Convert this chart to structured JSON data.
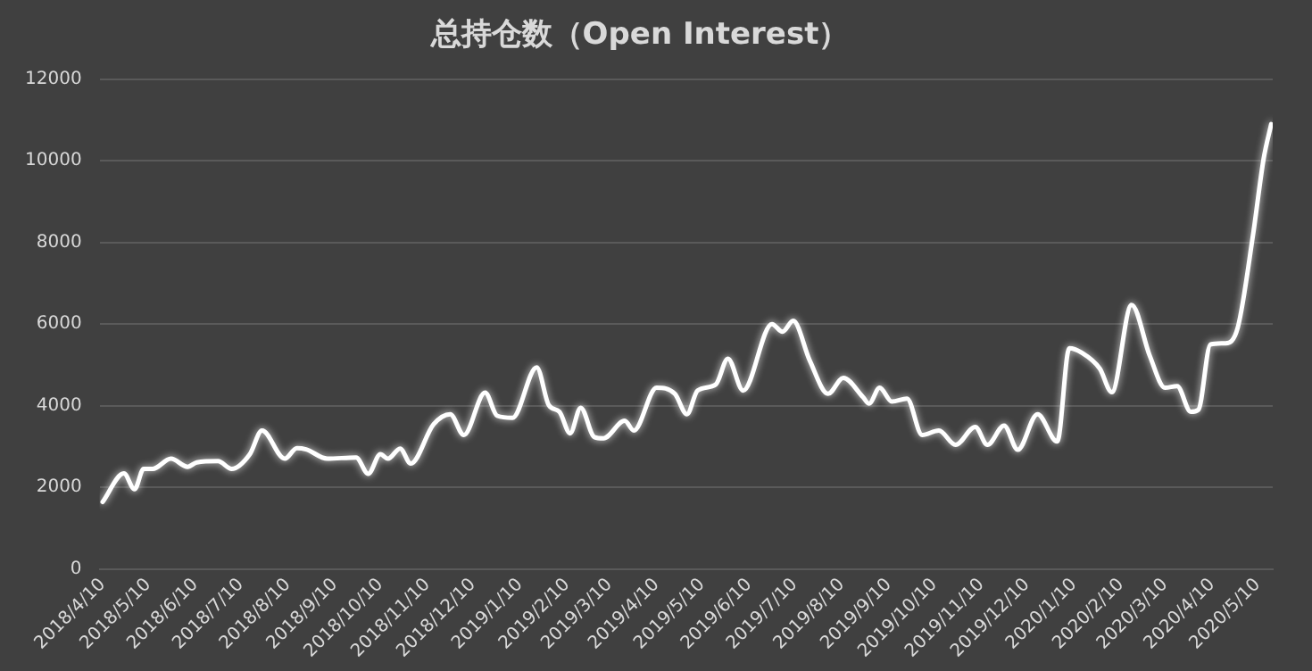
{
  "chart_data": {
    "type": "line",
    "title": "总持仓数（Open Interest）",
    "x": [
      "2018-04-10",
      "2018-04-24",
      "2018-05-01",
      "2018-05-07",
      "2018-05-13",
      "2018-05-25",
      "2018-06-05",
      "2018-06-11",
      "2018-06-25",
      "2018-07-04",
      "2018-07-16",
      "2018-07-24",
      "2018-08-08",
      "2018-08-16",
      "2018-08-22",
      "2018-09-05",
      "2018-09-24",
      "2018-10-02",
      "2018-10-10",
      "2018-10-15",
      "2018-10-23",
      "2018-10-30",
      "2018-11-14",
      "2018-11-25",
      "2018-12-04",
      "2018-12-18",
      "2018-12-26",
      "2019-01-05",
      "2019-01-21",
      "2019-01-29",
      "2019-02-05",
      "2019-02-12",
      "2019-02-19",
      "2019-02-28",
      "2019-03-06",
      "2019-03-20",
      "2019-03-26",
      "2019-04-10",
      "2019-04-22",
      "2019-04-30",
      "2019-05-07",
      "2019-05-19",
      "2019-05-27",
      "2019-06-06",
      "2019-06-25",
      "2019-07-02",
      "2019-07-09",
      "2019-07-20",
      "2019-08-01",
      "2019-08-11",
      "2019-08-24",
      "2019-08-28",
      "2019-09-04",
      "2019-09-12",
      "2019-09-22",
      "2019-10-02",
      "2019-10-13",
      "2019-10-24",
      "2019-11-06",
      "2019-11-14",
      "2019-11-25",
      "2019-12-04",
      "2019-12-17",
      "2019-12-30",
      "2020-01-07",
      "2020-01-15",
      "2020-01-27",
      "2020-02-04",
      "2020-02-17",
      "2020-02-29",
      "2020-03-10",
      "2020-03-18",
      "2020-03-27",
      "2020-04-01",
      "2020-04-09",
      "2020-04-19",
      "2020-04-27",
      "2020-05-07",
      "2020-05-14",
      "2020-05-19"
    ],
    "series": [
      {
        "color": "#ffffff",
        "values": [
          1640,
          2340,
          1950,
          2450,
          2450,
          2700,
          2500,
          2610,
          2640,
          2450,
          2810,
          3390,
          2700,
          2960,
          2930,
          2700,
          2730,
          2330,
          2810,
          2700,
          2950,
          2580,
          3540,
          3790,
          3280,
          4320,
          3750,
          3700,
          4940,
          4010,
          3850,
          3320,
          3950,
          3230,
          3200,
          3630,
          3390,
          4440,
          4290,
          3790,
          4370,
          4520,
          5150,
          4370,
          6000,
          5810,
          6080,
          5100,
          4290,
          4680,
          4210,
          4050,
          4440,
          4100,
          4170,
          3280,
          3390,
          3040,
          3480,
          3040,
          3510,
          2920,
          3790,
          3120,
          5410,
          5300,
          4910,
          4330,
          6470,
          5220,
          4440,
          4480,
          3850,
          3900,
          5500,
          5530,
          5920,
          8180,
          10050,
          10900
        ]
      }
    ],
    "xlim": [
      "2018-04-08",
      "2020-05-20"
    ],
    "xticks": [
      {
        "value": "2018-04-10",
        "label": "2018/4/10"
      },
      {
        "value": "2018-05-10",
        "label": "2018/5/10"
      },
      {
        "value": "2018-06-10",
        "label": "2018/6/10"
      },
      {
        "value": "2018-07-10",
        "label": "2018/7/10"
      },
      {
        "value": "2018-08-10",
        "label": "2018/8/10"
      },
      {
        "value": "2018-09-10",
        "label": "2018/9/10"
      },
      {
        "value": "2018-10-10",
        "label": "2018/10/10"
      },
      {
        "value": "2018-11-10",
        "label": "2018/11/10"
      },
      {
        "value": "2018-12-10",
        "label": "2018/12/10"
      },
      {
        "value": "2019-01-10",
        "label": "2019/1/10"
      },
      {
        "value": "2019-02-10",
        "label": "2019/2/10"
      },
      {
        "value": "2019-03-10",
        "label": "2019/3/10"
      },
      {
        "value": "2019-04-10",
        "label": "2019/4/10"
      },
      {
        "value": "2019-05-10",
        "label": "2019/5/10"
      },
      {
        "value": "2019-06-10",
        "label": "2019/6/10"
      },
      {
        "value": "2019-07-10",
        "label": "2019/7/10"
      },
      {
        "value": "2019-08-10",
        "label": "2019/8/10"
      },
      {
        "value": "2019-09-10",
        "label": "2019/9/10"
      },
      {
        "value": "2019-10-10",
        "label": "2019/10/10"
      },
      {
        "value": "2019-11-10",
        "label": "2019/11/10"
      },
      {
        "value": "2019-12-10",
        "label": "2019/12/10"
      },
      {
        "value": "2020-01-10",
        "label": "2020/1/10"
      },
      {
        "value": "2020-02-10",
        "label": "2020/2/10"
      },
      {
        "value": "2020-03-10",
        "label": "2020/3/10"
      },
      {
        "value": "2020-04-10",
        "label": "2020/4/10"
      },
      {
        "value": "2020-05-10",
        "label": "2020/5/10"
      }
    ],
    "ylim": [
      0,
      12000
    ],
    "yticks": [
      0,
      2000,
      4000,
      6000,
      8000,
      10000,
      12000
    ],
    "grid": "y",
    "legend": false,
    "marker": "none",
    "line_style": "solid"
  }
}
